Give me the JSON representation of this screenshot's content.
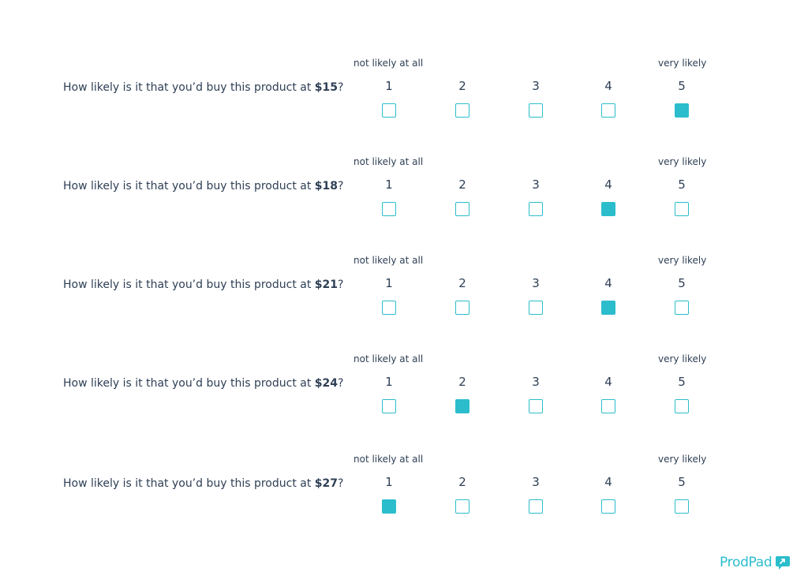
{
  "scale": {
    "low_label": "not likely at all",
    "high_label": "very likely",
    "options": [
      "1",
      "2",
      "3",
      "4",
      "5"
    ]
  },
  "questions": [
    {
      "prefix": "How likely is it that you’d buy this product at ",
      "price": "$15",
      "suffix": "?",
      "selected": 5
    },
    {
      "prefix": "How likely is it that you’d buy this product at ",
      "price": "$18",
      "suffix": "?",
      "selected": 4
    },
    {
      "prefix": "How likely is it that you’d buy this product at ",
      "price": "$21",
      "suffix": "?",
      "selected": 4
    },
    {
      "prefix": "How likely is it that you’d buy this product at ",
      "price": "$24",
      "suffix": "?",
      "selected": 2
    },
    {
      "prefix": "How likely is it that you’d buy this product at ",
      "price": "$27",
      "suffix": "?",
      "selected": 1
    }
  ],
  "brand": {
    "name": "ProdPad",
    "icon": "prodpad-logo-icon"
  },
  "colors": {
    "accent": "#2bbdcc",
    "text": "#2e3f55"
  }
}
